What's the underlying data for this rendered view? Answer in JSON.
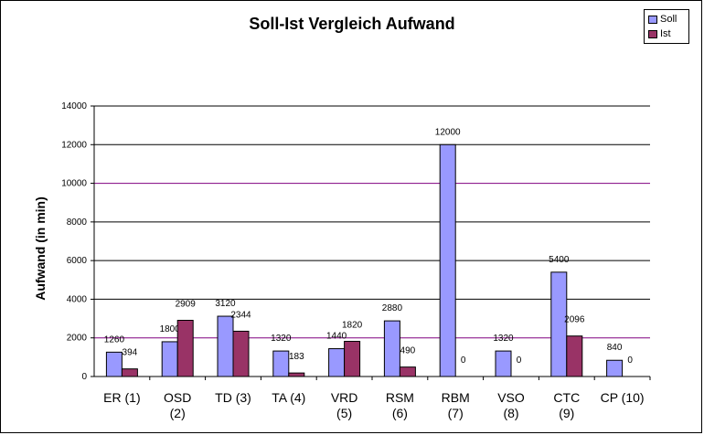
{
  "chart_data": {
    "type": "bar",
    "title": "Soll-Ist Vergleich Aufwand",
    "xlabel": "",
    "ylabel": "Aufwand (in min)",
    "ylim": [
      0,
      14000
    ],
    "yticks": [
      0,
      2000,
      4000,
      6000,
      8000,
      10000,
      12000,
      14000
    ],
    "ytick_labels": [
      "0",
      "2000",
      "4000",
      "6000",
      "8000",
      "10000",
      "12000",
      "14000"
    ],
    "grid": true,
    "legend": "top-right",
    "categories": [
      [
        "ER (1)"
      ],
      [
        "OSD",
        "(2)"
      ],
      [
        "TD (3)"
      ],
      [
        "TA (4)"
      ],
      [
        "VRD",
        "(5)"
      ],
      [
        "RSM",
        "(6)"
      ],
      [
        "RBM",
        "(7)"
      ],
      [
        "VSO",
        "(8)"
      ],
      [
        "CTC",
        "(9)"
      ],
      [
        "CP (10)"
      ]
    ],
    "series": [
      {
        "name": "Soll",
        "color": "#9999ff",
        "values": [
          1260,
          1800,
          3120,
          1320,
          1440,
          2880,
          12000,
          1320,
          5400,
          840
        ]
      },
      {
        "name": "Ist",
        "color": "#993366",
        "values": [
          394,
          2909,
          2344,
          183,
          1820,
          490,
          0,
          0,
          2096,
          0
        ]
      }
    ]
  }
}
